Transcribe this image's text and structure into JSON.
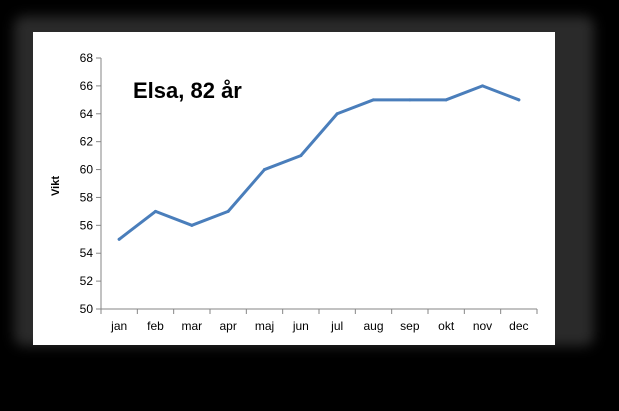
{
  "chart_data": {
    "type": "line",
    "title": "Elsa, 82 år",
    "xlabel": "",
    "ylabel": "Vikt",
    "categories": [
      "jan",
      "feb",
      "mar",
      "apr",
      "maj",
      "jun",
      "jul",
      "aug",
      "sep",
      "okt",
      "nov",
      "dec"
    ],
    "series": [
      {
        "values": [
          55,
          57,
          56,
          57,
          60,
          61,
          64,
          65,
          65,
          65,
          66,
          65
        ]
      }
    ],
    "ylim": [
      50,
      68
    ],
    "yticks": [
      50,
      52,
      54,
      56,
      58,
      60,
      62,
      64,
      66,
      68
    ],
    "grid": false,
    "legend": "none",
    "line_color": "#4a7ebb"
  }
}
